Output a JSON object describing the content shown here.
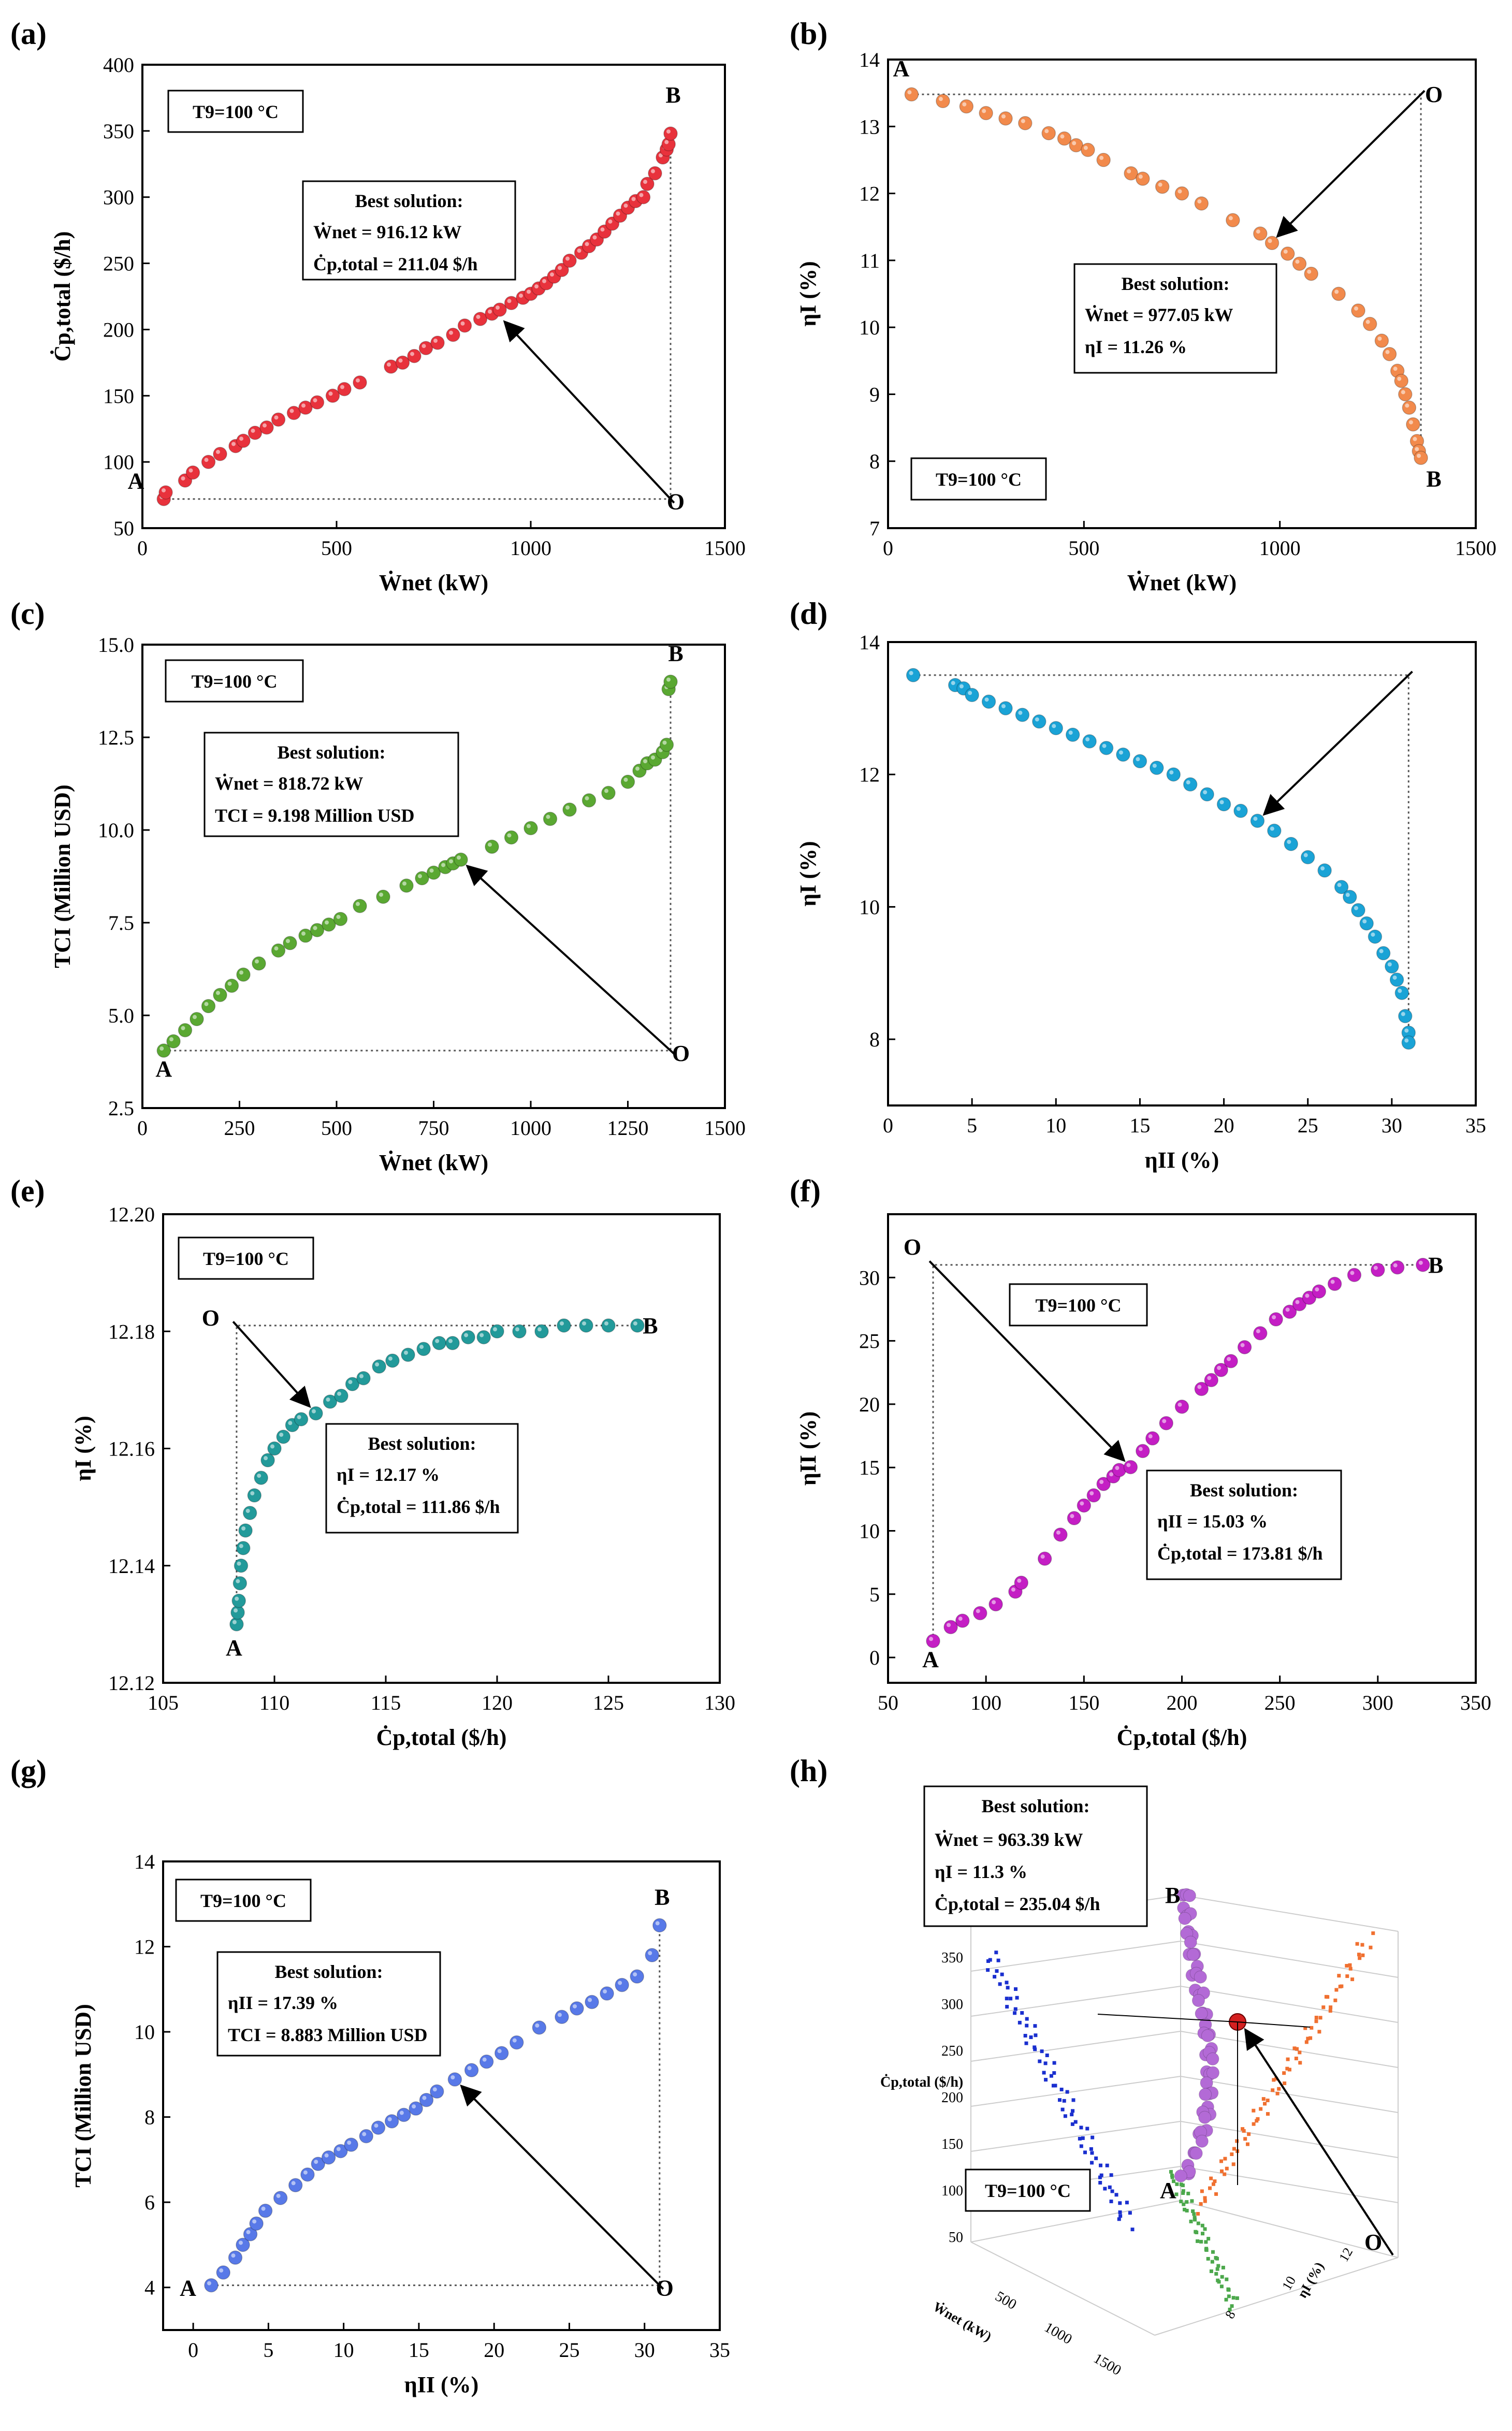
{
  "chart_data": [
    {
      "panel": "(a)",
      "type": "scatter",
      "xlabel": "Ẇnet (kW)",
      "ylabel": "Ċp,total ($/h)",
      "xlim": [
        0,
        1500
      ],
      "ylim": [
        50,
        400
      ],
      "xticks": [
        0,
        500,
        1000,
        1500
      ],
      "yticks": [
        50,
        100,
        150,
        200,
        250,
        300,
        350,
        400
      ],
      "color": "#e8323c",
      "temp_label": "T9=100 °C",
      "best_title": "Best solution:",
      "best_lines": [
        "Ẇnet = 916.12 kW",
        "Ċp,total = 211.04 $/h"
      ],
      "best": [
        916.12,
        211.04
      ],
      "A": [
        50,
        72
      ],
      "B": [
        1360,
        350
      ],
      "O": [
        1360,
        72
      ],
      "labels": {
        "A": "A",
        "B": "B",
        "O": "O"
      },
      "x": [
        55,
        60,
        110,
        130,
        170,
        200,
        240,
        260,
        290,
        320,
        350,
        390,
        420,
        450,
        490,
        520,
        560,
        640,
        670,
        700,
        730,
        760,
        800,
        830,
        870,
        900,
        920,
        950,
        980,
        1000,
        1020,
        1040,
        1060,
        1080,
        1100,
        1130,
        1150,
        1170,
        1190,
        1210,
        1230,
        1250,
        1270,
        1290,
        1300,
        1320,
        1340,
        1350,
        1355,
        1360
      ],
      "y": [
        72,
        77,
        86,
        92,
        100,
        106,
        112,
        116,
        122,
        126,
        132,
        137,
        141,
        145,
        150,
        155,
        160,
        172,
        175,
        180,
        186,
        190,
        196,
        203,
        208,
        212,
        215,
        220,
        224,
        227,
        231,
        235,
        240,
        245,
        252,
        258,
        263,
        268,
        274,
        280,
        286,
        292,
        297,
        300,
        310,
        318,
        330,
        336,
        340,
        348
      ]
    },
    {
      "panel": "(b)",
      "type": "scatter",
      "xlabel": "Ẇnet (kW)",
      "ylabel": "ηI (%)",
      "xlim": [
        0,
        1500
      ],
      "ylim": [
        7,
        14
      ],
      "xticks": [
        0,
        500,
        1000,
        1500
      ],
      "yticks": [
        7,
        8,
        9,
        10,
        11,
        12,
        13,
        14
      ],
      "color": "#f28a4c",
      "temp_label": "T9=100 °C",
      "best_title": "Best solution:",
      "best_lines": [
        "Ẇnet = 977.05 kW",
        "ηI = 11.26 %"
      ],
      "best": [
        977.05,
        11.26
      ],
      "A": [
        60,
        13.48
      ],
      "B": [
        1360,
        8.05
      ],
      "O": [
        1360,
        13.48
      ],
      "labels": {
        "A": "A",
        "B": "B",
        "O": "O"
      },
      "x": [
        60,
        140,
        200,
        250,
        300,
        350,
        410,
        450,
        480,
        510,
        550,
        620,
        650,
        700,
        750,
        800,
        880,
        950,
        980,
        1020,
        1050,
        1080,
        1150,
        1200,
        1230,
        1260,
        1280,
        1300,
        1310,
        1320,
        1330,
        1340,
        1350,
        1355,
        1360
      ],
      "y": [
        13.48,
        13.38,
        13.3,
        13.2,
        13.12,
        13.05,
        12.9,
        12.82,
        12.72,
        12.65,
        12.5,
        12.3,
        12.22,
        12.1,
        12.0,
        11.85,
        11.6,
        11.4,
        11.26,
        11.1,
        10.95,
        10.8,
        10.5,
        10.25,
        10.05,
        9.8,
        9.6,
        9.35,
        9.2,
        9.0,
        8.8,
        8.55,
        8.3,
        8.15,
        8.05
      ]
    },
    {
      "panel": "(c)",
      "type": "scatter",
      "xlabel": "Ẇnet (kW)",
      "ylabel": "TCI (Million USD)",
      "xlim": [
        0,
        1500
      ],
      "ylim": [
        2.5,
        15
      ],
      "xticks": [
        0,
        250,
        500,
        750,
        1000,
        1250,
        1500
      ],
      "yticks": [
        2.5,
        5.0,
        7.5,
        10.0,
        12.5,
        15.0
      ],
      "ytickfmt": 1,
      "color": "#5aa832",
      "temp_label": "T9=100 °C",
      "best_title": "Best solution:",
      "best_lines": [
        "Ẇnet = 818.72 kW",
        "TCI = 9.198 Million USD"
      ],
      "best": [
        818.72,
        9.198
      ],
      "A": [
        55,
        4.05
      ],
      "B": [
        1360,
        14.0
      ],
      "O": [
        1360,
        4.05
      ],
      "labels": {
        "A": "A",
        "B": "B",
        "O": "O"
      },
      "x": [
        55,
        80,
        110,
        140,
        170,
        200,
        230,
        260,
        300,
        350,
        380,
        420,
        450,
        480,
        510,
        560,
        620,
        680,
        720,
        750,
        780,
        800,
        820,
        900,
        950,
        1000,
        1050,
        1100,
        1150,
        1200,
        1250,
        1280,
        1300,
        1320,
        1340,
        1350,
        1355,
        1360
      ],
      "y": [
        4.05,
        4.3,
        4.6,
        4.9,
        5.25,
        5.55,
        5.8,
        6.1,
        6.4,
        6.75,
        6.95,
        7.15,
        7.3,
        7.45,
        7.6,
        7.95,
        8.2,
        8.5,
        8.7,
        8.85,
        9.0,
        9.1,
        9.2,
        9.55,
        9.8,
        10.05,
        10.3,
        10.55,
        10.8,
        11.0,
        11.3,
        11.6,
        11.8,
        11.9,
        12.1,
        12.3,
        13.8,
        14.0
      ]
    },
    {
      "panel": "(d)",
      "type": "scatter",
      "xlabel": "ηII (%)",
      "ylabel": "ηI (%)",
      "xlim": [
        0,
        35
      ],
      "ylim": [
        7,
        14
      ],
      "xticks": [
        0,
        5,
        10,
        15,
        20,
        25,
        30,
        35
      ],
      "yticks": [
        8,
        10,
        12,
        14
      ],
      "color": "#1aa3d6",
      "A": [
        1.5,
        13.5
      ],
      "B": [
        31,
        7.95
      ],
      "O": [
        31,
        13.5
      ],
      "best": [
        22.0,
        11.3
      ],
      "x": [
        1.5,
        4.0,
        4.5,
        5.0,
        6.0,
        7.0,
        8.0,
        9.0,
        10.0,
        11.0,
        12.0,
        13.0,
        14.0,
        15.0,
        16.0,
        17.0,
        18.0,
        19.0,
        20.0,
        21.0,
        22.0,
        23.0,
        24.0,
        25.0,
        26.0,
        27.0,
        27.5,
        28.0,
        28.5,
        29.0,
        29.5,
        30.0,
        30.3,
        30.6,
        30.8,
        31.0,
        31.0
      ],
      "y": [
        13.5,
        13.35,
        13.3,
        13.2,
        13.1,
        13.0,
        12.9,
        12.8,
        12.7,
        12.6,
        12.5,
        12.4,
        12.3,
        12.2,
        12.1,
        12.0,
        11.85,
        11.7,
        11.55,
        11.45,
        11.3,
        11.15,
        10.95,
        10.75,
        10.55,
        10.3,
        10.15,
        9.95,
        9.75,
        9.55,
        9.3,
        9.1,
        8.9,
        8.7,
        8.35,
        8.1,
        7.95
      ]
    },
    {
      "panel": "(e)",
      "type": "scatter",
      "xlabel": "Ċp,total ($/h)",
      "ylabel": "ηI (%)",
      "xlim": [
        105,
        130
      ],
      "ylim": [
        12.12,
        12.2
      ],
      "xticks": [
        105,
        110,
        115,
        120,
        125,
        130
      ],
      "yticks": [
        12.12,
        12.14,
        12.16,
        12.18,
        12.2
      ],
      "ytickfmt": 2,
      "color": "#229a9a",
      "temp_label": "T9=100 °C",
      "best_title": "Best solution:",
      "best_lines": [
        "ηI = 12.17 %",
        "Ċp,total = 111.86 $/h"
      ],
      "best": [
        111.86,
        12.166
      ],
      "A": [
        108.3,
        12.13
      ],
      "B": [
        126.3,
        12.181
      ],
      "O": [
        108.3,
        12.181
      ],
      "labels": {
        "A": "A",
        "B": "B",
        "O": "O"
      },
      "x": [
        108.3,
        108.35,
        108.4,
        108.45,
        108.5,
        108.6,
        108.7,
        108.9,
        109.1,
        109.4,
        109.7,
        110.0,
        110.4,
        110.8,
        111.2,
        111.86,
        112.5,
        113.0,
        113.5,
        114.0,
        114.7,
        115.3,
        116.0,
        116.7,
        117.4,
        118.0,
        118.7,
        119.4,
        120.0,
        121.0,
        122.0,
        123.0,
        124.0,
        125.0,
        126.3
      ],
      "y": [
        12.13,
        12.132,
        12.134,
        12.137,
        12.14,
        12.143,
        12.146,
        12.149,
        12.152,
        12.155,
        12.158,
        12.16,
        12.162,
        12.164,
        12.165,
        12.166,
        12.168,
        12.169,
        12.171,
        12.172,
        12.174,
        12.175,
        12.176,
        12.177,
        12.178,
        12.178,
        12.179,
        12.179,
        12.18,
        12.18,
        12.18,
        12.181,
        12.181,
        12.181,
        12.181
      ]
    },
    {
      "panel": "(f)",
      "type": "scatter",
      "xlabel": "Ċp,total ($/h)",
      "ylabel": "ηII (%)",
      "xlim": [
        50,
        350
      ],
      "ylim": [
        -2,
        35
      ],
      "xticks": [
        50,
        100,
        150,
        200,
        250,
        300,
        350
      ],
      "yticks": [
        0,
        5,
        10,
        15,
        20,
        25,
        30
      ],
      "color": "#c41ec4",
      "temp_label": "T9=100 °C",
      "best_title": "Best solution:",
      "best_lines": [
        "ηII = 15.03 %",
        "Ċp,total = 173.81 $/h"
      ],
      "best": [
        173.81,
        15.03
      ],
      "A": [
        73,
        1.3
      ],
      "B": [
        323,
        31
      ],
      "O": [
        73,
        31
      ],
      "labels": {
        "A": "A",
        "B": "B",
        "O": "O"
      },
      "x": [
        73,
        82,
        88,
        97,
        105,
        115,
        118,
        130,
        138,
        145,
        150,
        155,
        160,
        165,
        168,
        173.81,
        180,
        185,
        192,
        200,
        210,
        215,
        220,
        225,
        232,
        240,
        248,
        255,
        260,
        265,
        270,
        278,
        288,
        300,
        310,
        323
      ],
      "y": [
        1.3,
        2.4,
        2.9,
        3.5,
        4.2,
        5.2,
        5.9,
        7.8,
        9.7,
        11.0,
        12.0,
        12.8,
        13.7,
        14.3,
        14.8,
        15.03,
        16.3,
        17.3,
        18.5,
        19.8,
        21.2,
        21.9,
        22.7,
        23.4,
        24.5,
        25.6,
        26.7,
        27.3,
        27.9,
        28.4,
        28.9,
        29.5,
        30.2,
        30.6,
        30.8,
        31.0
      ]
    },
    {
      "panel": "(g)",
      "type": "scatter",
      "xlabel": "ηII (%)",
      "ylabel": "TCI (Million USD)",
      "xlim": [
        -2,
        35
      ],
      "ylim": [
        3,
        14
      ],
      "xticks": [
        0,
        5,
        10,
        15,
        20,
        25,
        30,
        35
      ],
      "yticks": [
        4,
        6,
        8,
        10,
        12,
        14
      ],
      "color": "#5879e8",
      "temp_label": "T9=100 °C",
      "best_title": "Best solution:",
      "best_lines": [
        "ηII = 17.39 %",
        "TCI = 8.883 Million USD"
      ],
      "best": [
        17.39,
        8.883
      ],
      "A": [
        1.2,
        4.05
      ],
      "B": [
        31,
        12.5
      ],
      "O": [
        31,
        4.05
      ],
      "labels": {
        "A": "A",
        "B": "B",
        "O": "O"
      },
      "x": [
        1.2,
        2.0,
        2.8,
        3.3,
        3.8,
        4.2,
        4.8,
        5.8,
        6.8,
        7.6,
        8.3,
        9.0,
        9.8,
        10.5,
        11.5,
        12.3,
        13.2,
        14.0,
        14.8,
        15.5,
        16.2,
        17.39,
        18.5,
        19.5,
        20.5,
        21.5,
        23.0,
        24.5,
        25.5,
        26.5,
        27.5,
        28.5,
        29.5,
        30.5,
        31.0
      ],
      "y": [
        4.05,
        4.35,
        4.7,
        5.0,
        5.25,
        5.5,
        5.8,
        6.1,
        6.4,
        6.65,
        6.9,
        7.05,
        7.2,
        7.35,
        7.55,
        7.75,
        7.9,
        8.05,
        8.2,
        8.4,
        8.6,
        8.883,
        9.1,
        9.3,
        9.5,
        9.75,
        10.1,
        10.35,
        10.55,
        10.7,
        10.9,
        11.1,
        11.3,
        11.8,
        12.5
      ]
    },
    {
      "panel": "(h)",
      "type": "scatter3d",
      "xlabel": "Ẇnet (kW)",
      "ylabel": "ηI (%)",
      "zlabel": "Ċp,total ($/h)",
      "zticks": [
        50,
        100,
        150,
        200,
        250,
        300,
        350
      ],
      "xticks": [
        500,
        1000,
        1500
      ],
      "yticks": [
        8,
        10,
        12
      ],
      "colors": {
        "main": "#b36ad6",
        "proj1": "#1a2fcf",
        "proj2": "#f07030",
        "proj3": "#4ca84c",
        "best": "#d42020"
      },
      "temp_label": "T9=100 °C",
      "best_title": "Best solution:",
      "best_lines": [
        "Ẇnet = 963.39 kW",
        "ηI = 11.3 %",
        "Ċp,total = 235.04 $/h"
      ],
      "labels": {
        "A": "A",
        "B": "B",
        "O": "O"
      }
    }
  ]
}
